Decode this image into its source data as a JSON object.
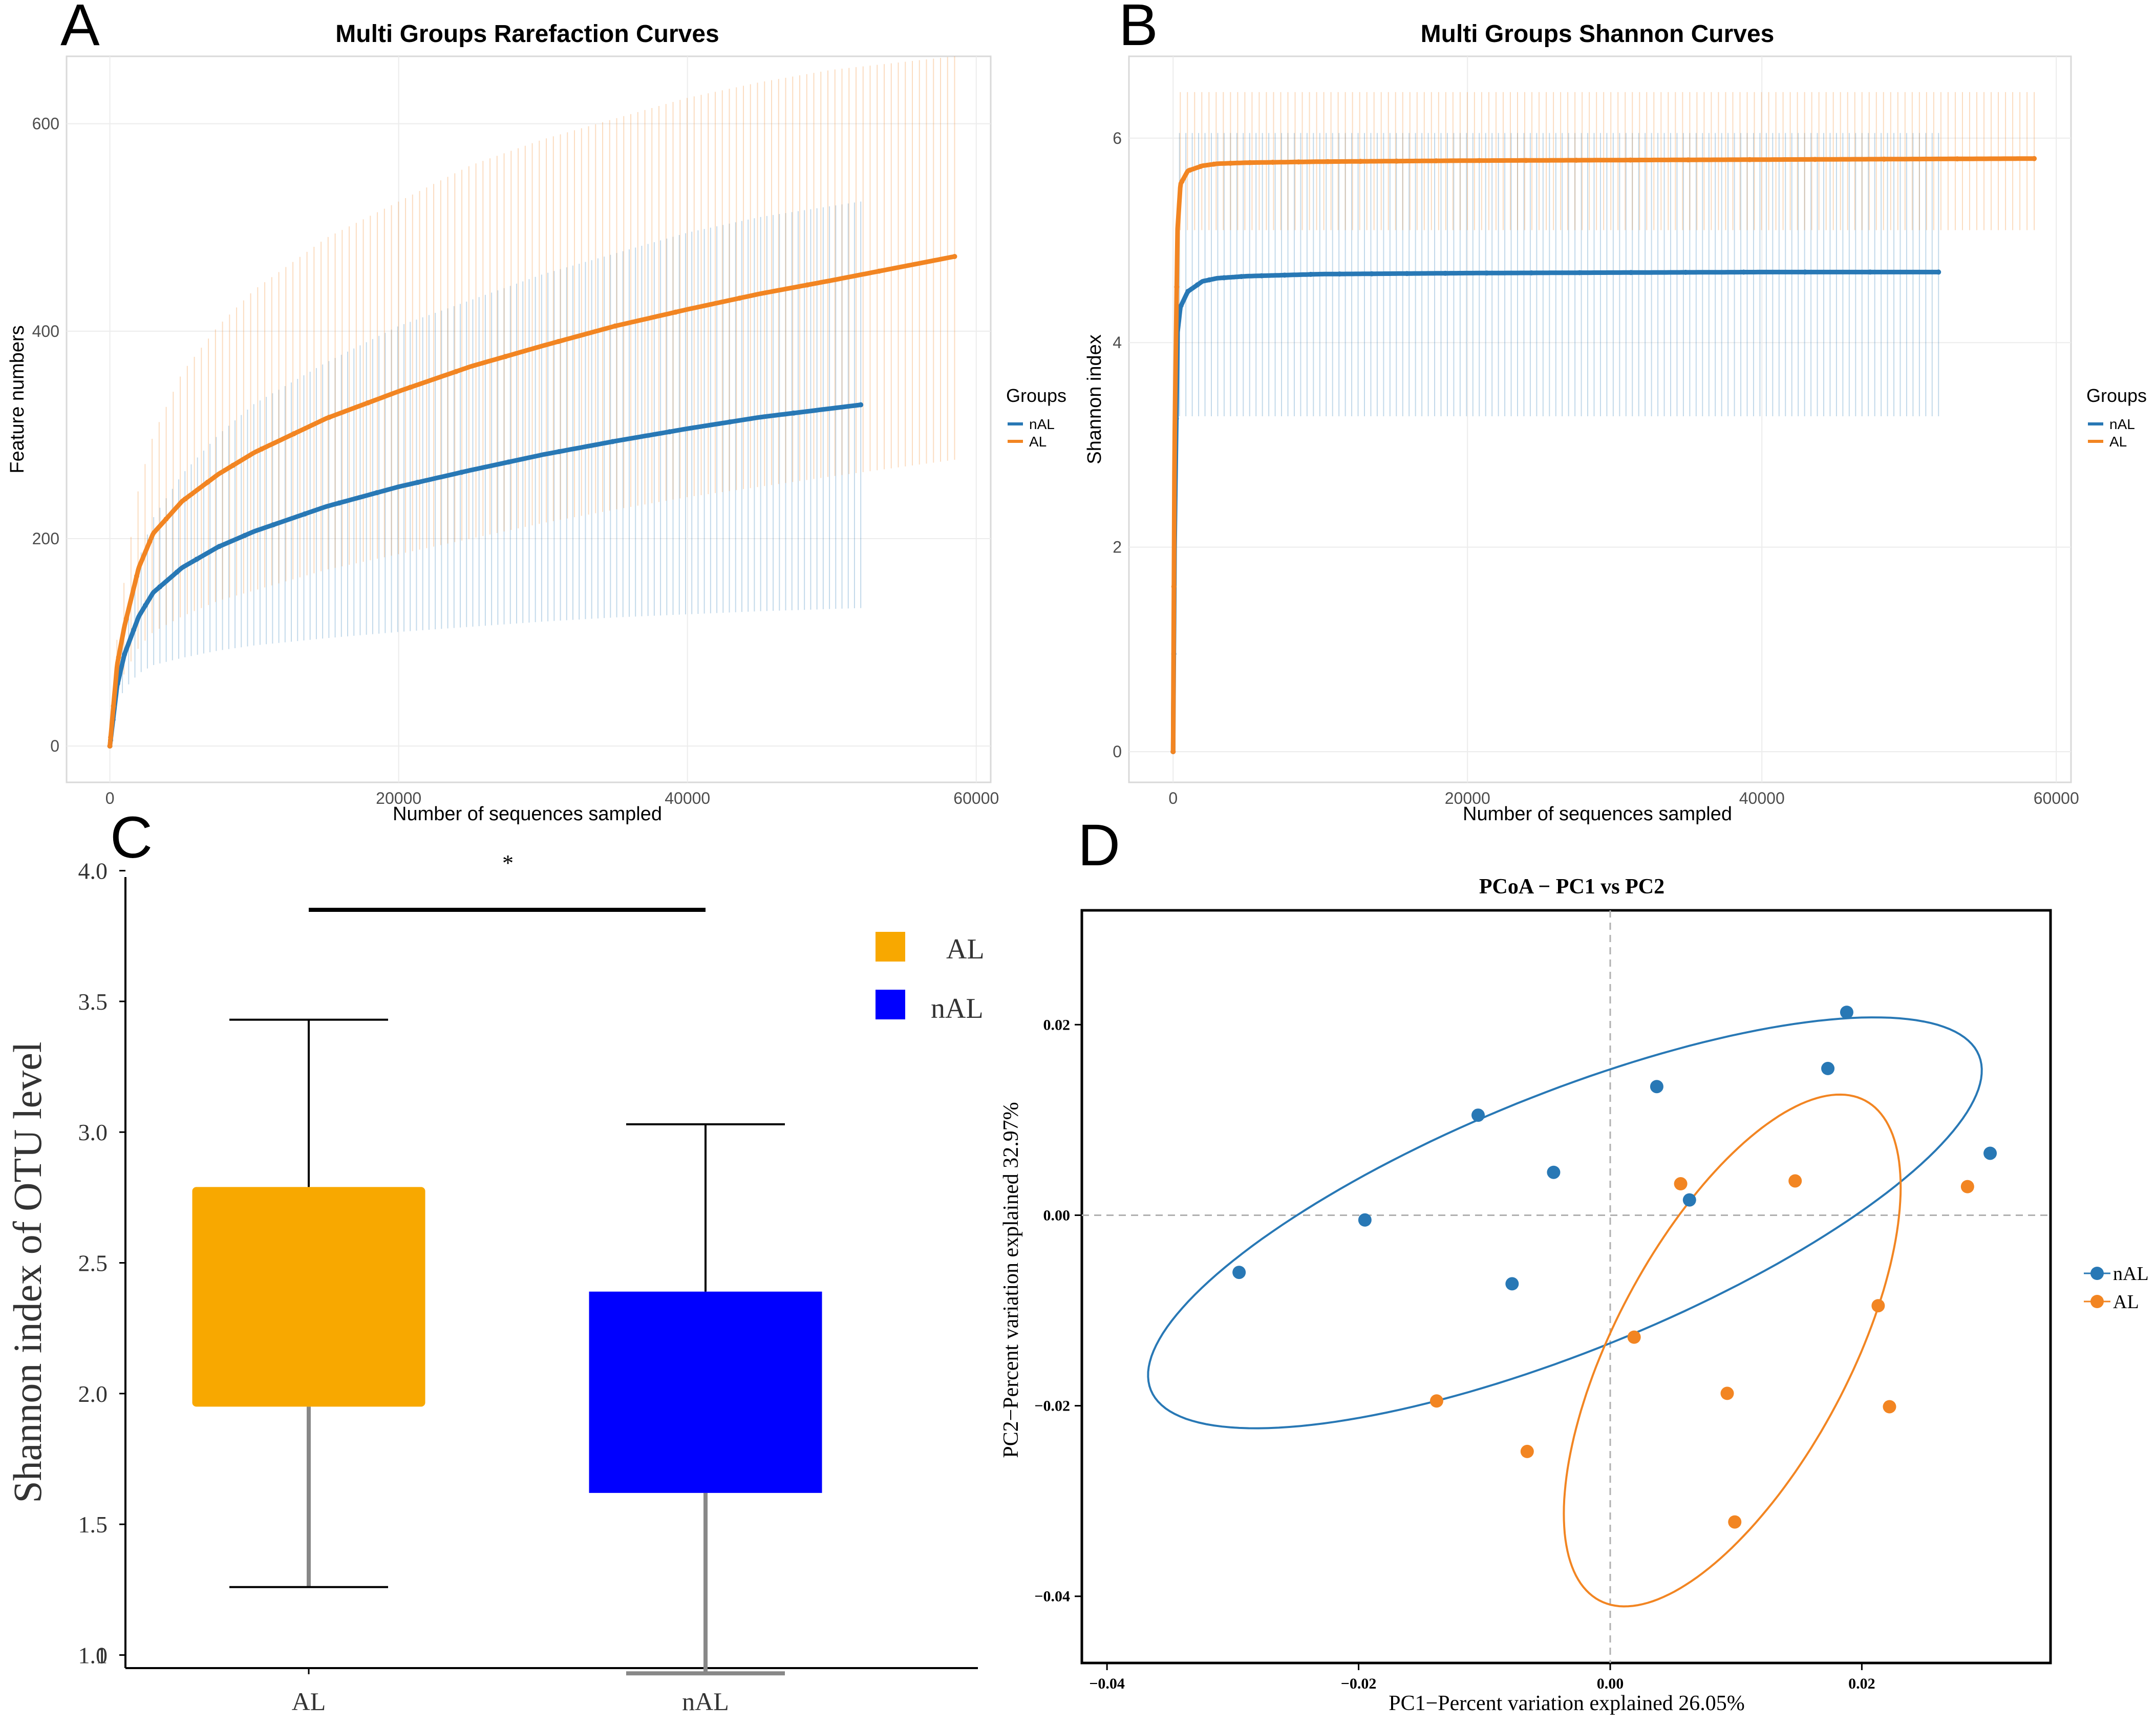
{
  "colors": {
    "nAL": "#2878b5",
    "AL": "#f28522",
    "box_AL": "#f8a800",
    "box_nAL": "#0000ff"
  },
  "panels": [
    {
      "letter": "A"
    },
    {
      "letter": "B"
    },
    {
      "letter": "C"
    },
    {
      "letter": "D"
    }
  ],
  "chart_data": [
    {
      "type": "line",
      "title": "Multi Groups Rarefaction Curves",
      "xlabel": "Number of sequences sampled",
      "ylabel": "Feature numbers",
      "xlim": [
        -3000,
        61000
      ],
      "ylim": [
        -35,
        665
      ],
      "xticks": [
        "0",
        "20000",
        "40000",
        "60000"
      ],
      "yticks": [
        "0",
        "200",
        "400",
        "600"
      ],
      "grid": true,
      "legend": {
        "title": "Groups",
        "position": "right",
        "entries": [
          "nAL",
          "AL"
        ]
      },
      "series": [
        {
          "name": "nAL",
          "x": [
            0,
            500,
            1000,
            2000,
            3000,
            5000,
            7500,
            10000,
            15000,
            20000,
            25000,
            30000,
            35000,
            40000,
            45000,
            52000
          ],
          "y": [
            0,
            58,
            88,
            125,
            148,
            172,
            192,
            207,
            231,
            250,
            266,
            281,
            294,
            306,
            317,
            329
          ],
          "lower": [
            0,
            40,
            55,
            70,
            78,
            85,
            92,
            97,
            104,
            110,
            115,
            120,
            124,
            127,
            130,
            133
          ],
          "upper": [
            0,
            75,
            120,
            180,
            220,
            262,
            300,
            330,
            370,
            405,
            430,
            455,
            475,
            495,
            510,
            525
          ]
        },
        {
          "name": "AL",
          "x": [
            0,
            500,
            1000,
            2000,
            3000,
            5000,
            7500,
            10000,
            15000,
            20000,
            25000,
            30000,
            35000,
            40000,
            45000,
            50000,
            58500
          ],
          "y": [
            0,
            78,
            115,
            172,
            205,
            236,
            262,
            283,
            316,
            342,
            366,
            386,
            405,
            421,
            436,
            449,
            472
          ],
          "lower": [
            0,
            50,
            70,
            95,
            110,
            125,
            140,
            150,
            170,
            185,
            200,
            215,
            228,
            240,
            250,
            260,
            276
          ],
          "upper": [
            0,
            105,
            160,
            250,
            300,
            360,
            405,
            440,
            490,
            525,
            560,
            585,
            605,
            625,
            640,
            652,
            665
          ]
        }
      ]
    },
    {
      "type": "line",
      "title": "Multi Groups Shannon Curves",
      "xlabel": "Number of sequences sampled",
      "ylabel": "Shannon index",
      "xlim": [
        -3000,
        61000
      ],
      "ylim": [
        -0.3,
        6.8
      ],
      "xticks": [
        "0",
        "20000",
        "40000",
        "60000"
      ],
      "yticks": [
        "0",
        "2",
        "4",
        "6"
      ],
      "grid": true,
      "legend": {
        "title": "Groups",
        "position": "right",
        "entries": [
          "nAL",
          "AL"
        ]
      },
      "series": [
        {
          "name": "nAL",
          "x": [
            0,
            100,
            300,
            500,
            1000,
            2000,
            3000,
            5000,
            10000,
            20000,
            30000,
            40000,
            52000
          ],
          "y": [
            0,
            2.0,
            4.1,
            4.35,
            4.5,
            4.6,
            4.63,
            4.65,
            4.67,
            4.68,
            4.685,
            4.69,
            4.69
          ],
          "lower": 3.28,
          "upper": 6.05
        },
        {
          "name": "AL",
          "x": [
            0,
            100,
            300,
            500,
            1000,
            2000,
            3000,
            5000,
            10000,
            20000,
            30000,
            40000,
            58500
          ],
          "y": [
            0,
            3.0,
            5.1,
            5.55,
            5.68,
            5.73,
            5.75,
            5.76,
            5.77,
            5.78,
            5.785,
            5.79,
            5.8
          ],
          "lower": 5.1,
          "upper": 6.45
        }
      ]
    },
    {
      "type": "box",
      "title": "",
      "xlabel": "",
      "ylabel": "Shannon index of OTU level",
      "ylim": [
        0.95,
        4.05
      ],
      "yticks": [
        "1",
        "1.0",
        "1.5",
        "2.0",
        "2.5",
        "3.0",
        "3.5",
        "4.0"
      ],
      "categories": [
        "AL",
        "nAL"
      ],
      "boxes": [
        {
          "name": "AL",
          "min": 1.26,
          "q1": 1.95,
          "q3": 2.79,
          "max": 3.43
        },
        {
          "name": "nAL",
          "min": 0.93,
          "q1": 1.62,
          "q3": 2.39,
          "max": 3.03
        }
      ],
      "significance": "*",
      "legend": {
        "position": "top-right",
        "entries": [
          "AL",
          "nAL"
        ]
      }
    },
    {
      "type": "scatter",
      "title": "PCoA − PC1 vs PC2",
      "xlabel": "PC1−Percent variation explained 26.05%",
      "ylabel": "PC2−Percent variation explained 32.97%",
      "xlim": [
        -0.042,
        0.035
      ],
      "ylim": [
        -0.047,
        0.032
      ],
      "xticks": [
        "−0.04",
        "−0.02",
        "0.00",
        "0.02"
      ],
      "yticks": [
        "−0.04",
        "−0.02",
        "0.00",
        "0.02"
      ],
      "legend": {
        "position": "right",
        "entries": [
          "nAL",
          "AL"
        ]
      },
      "series": [
        {
          "name": "nAL",
          "points": [
            [
              -0.0295,
              -0.006
            ],
            [
              -0.0195,
              -0.0005
            ],
            [
              -0.0105,
              0.0105
            ],
            [
              -0.0078,
              -0.0072
            ],
            [
              -0.0045,
              0.0045
            ],
            [
              0.0037,
              0.0135
            ],
            [
              0.0063,
              0.0016
            ],
            [
              0.0173,
              0.0154
            ],
            [
              0.0188,
              0.0213
            ],
            [
              0.0302,
              0.0065
            ]
          ],
          "ellipse": {
            "cx": -0.0036,
            "cy": -0.0008,
            "rx": 0.0355,
            "ry": 0.0135,
            "angle": 22
          }
        },
        {
          "name": "AL",
          "points": [
            [
              -0.0138,
              -0.0195
            ],
            [
              -0.0066,
              -0.0248
            ],
            [
              0.0019,
              -0.0128
            ],
            [
              0.0056,
              0.0033
            ],
            [
              0.0093,
              -0.0187
            ],
            [
              0.0099,
              -0.0322
            ],
            [
              0.0147,
              0.0036
            ],
            [
              0.0213,
              -0.0095
            ],
            [
              0.0222,
              -0.0201
            ],
            [
              0.0284,
              0.003
            ]
          ],
          "ellipse": {
            "cx": 0.0097,
            "cy": -0.0142,
            "rx": 0.0225,
            "ry": 0.0123,
            "angle": 62
          }
        }
      ]
    }
  ]
}
